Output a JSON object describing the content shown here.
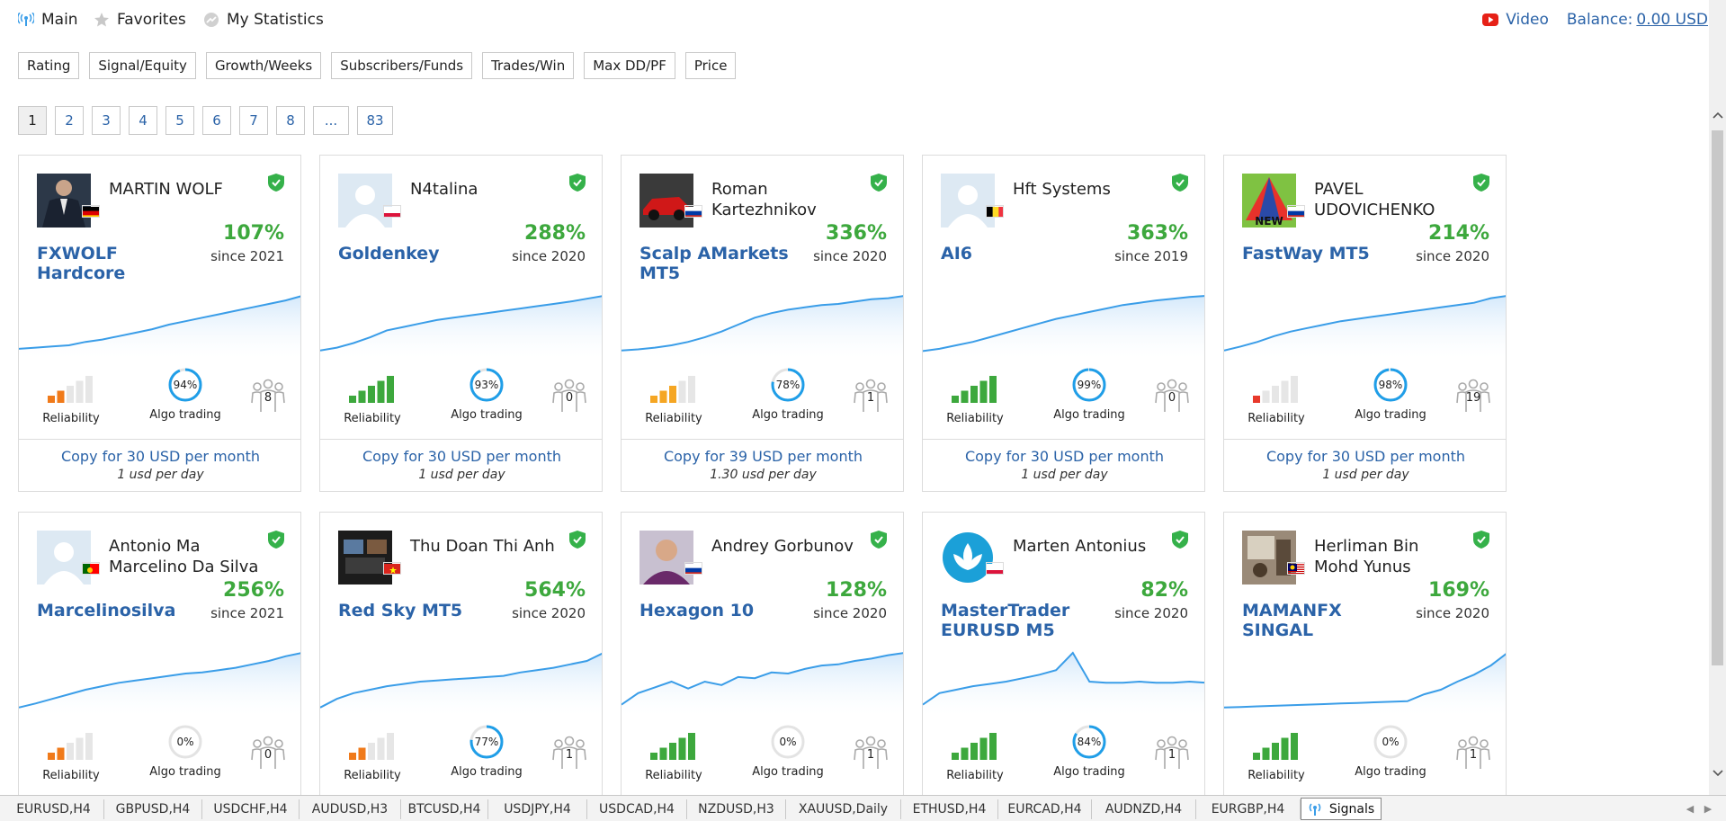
{
  "nav": {
    "main": "Main",
    "favorites": "Favorites",
    "statistics": "My Statistics",
    "video": "Video",
    "balance_label": "Balance:",
    "balance_value": "0.00 USD"
  },
  "sort_buttons": [
    "Rating",
    "Signal/Equity",
    "Growth/Weeks",
    "Subscribers/Funds",
    "Trades/Win",
    "Max DD/PF",
    "Price"
  ],
  "pages": [
    "1",
    "2",
    "3",
    "4",
    "5",
    "6",
    "7",
    "8",
    "...",
    "83"
  ],
  "labels": {
    "reliability": "Reliability",
    "algo": "Algo trading"
  },
  "cards": [
    {
      "author": "MARTIN WOLF",
      "signal": "FXWOLF Hardcore",
      "growth": "107%",
      "since": "since 2021",
      "algo": "94%",
      "algo_pct": 94,
      "reliability_bars": 2,
      "reliability_color": "#f07a1a",
      "subscribers": "8",
      "copy": "Copy for 30 USD per month",
      "per_day": "1 usd per day",
      "avatar": "photo-suit",
      "flag": "de",
      "equity": [
        0.08,
        0.1,
        0.12,
        0.14,
        0.2,
        0.24,
        0.3,
        0.36,
        0.42,
        0.5,
        0.56,
        0.62,
        0.68,
        0.74,
        0.8,
        0.86,
        0.92,
        1
      ]
    },
    {
      "author": "N4talina",
      "signal": "Goldenkey",
      "growth": "288%",
      "since": "since 2020",
      "algo": "93%",
      "algo_pct": 93,
      "reliability_bars": 5,
      "reliability_color": "#3da83d",
      "subscribers": "0",
      "copy": "Copy for 30 USD per month",
      "per_day": "1 usd per day",
      "avatar": "default",
      "flag": "pl",
      "equity": [
        0.05,
        0.1,
        0.18,
        0.28,
        0.4,
        0.46,
        0.52,
        0.58,
        0.62,
        0.66,
        0.7,
        0.74,
        0.78,
        0.82,
        0.86,
        0.9,
        0.95,
        1
      ]
    },
    {
      "author": "Roman Kartezhnikov",
      "signal": "Scalp AMarkets MT5",
      "growth": "336%",
      "since": "since 2020",
      "algo": "78%",
      "algo_pct": 78,
      "reliability_bars": 3,
      "reliability_color": "#f5a623",
      "subscribers": "1",
      "copy": "Copy for 39 USD per month",
      "per_day": "1.30 usd per day",
      "avatar": "photo-car",
      "flag": "ru",
      "equity": [
        0.05,
        0.07,
        0.1,
        0.14,
        0.2,
        0.28,
        0.38,
        0.5,
        0.62,
        0.7,
        0.76,
        0.8,
        0.84,
        0.86,
        0.9,
        0.94,
        0.96,
        1
      ]
    },
    {
      "author": "Hft Systems",
      "signal": "AI6",
      "growth": "363%",
      "since": "since 2019",
      "algo": "99%",
      "algo_pct": 99,
      "reliability_bars": 5,
      "reliability_color": "#3da83d",
      "subscribers": "0",
      "copy": "Copy for 30 USD per month",
      "per_day": "1 usd per day",
      "avatar": "default",
      "flag": "be",
      "equity": [
        0.04,
        0.08,
        0.14,
        0.2,
        0.28,
        0.36,
        0.44,
        0.52,
        0.6,
        0.66,
        0.72,
        0.78,
        0.84,
        0.88,
        0.92,
        0.95,
        0.98,
        1
      ]
    },
    {
      "author": "PAVEL UDOVICHENKO",
      "signal": "FastWay MT5",
      "growth": "214%",
      "since": "since 2020",
      "algo": "98%",
      "algo_pct": 98,
      "reliability_bars": 1,
      "reliability_color": "#e8392b",
      "subscribers": "19",
      "copy": "Copy for 30 USD per month",
      "per_day": "1 usd per day",
      "avatar": "new-logo",
      "flag": "ru",
      "equity": [
        0.05,
        0.12,
        0.2,
        0.3,
        0.38,
        0.44,
        0.5,
        0.56,
        0.6,
        0.64,
        0.68,
        0.72,
        0.76,
        0.8,
        0.84,
        0.88,
        0.96,
        1
      ]
    },
    {
      "author": "Antonio Ma Marcelino Da Silva",
      "signal": "Marcelinosilva",
      "growth": "256%",
      "since": "since 2021",
      "algo": "0%",
      "algo_pct": 0,
      "reliability_bars": 2,
      "reliability_color": "#f07a1a",
      "subscribers": "0",
      "copy": "",
      "per_day": "",
      "avatar": "default",
      "flag": "pt",
      "equity": [
        0.05,
        0.12,
        0.2,
        0.28,
        0.36,
        0.42,
        0.48,
        0.52,
        0.56,
        0.6,
        0.64,
        0.66,
        0.7,
        0.74,
        0.8,
        0.86,
        0.94,
        1
      ]
    },
    {
      "author": "Thu Doan Thi Anh",
      "signal": "Red Sky MT5",
      "growth": "564%",
      "since": "since 2020",
      "algo": "77%",
      "algo_pct": 77,
      "reliability_bars": 2,
      "reliability_color": "#f07a1a",
      "subscribers": "1",
      "copy": "",
      "per_day": "",
      "avatar": "photo-monitors",
      "flag": "vn",
      "equity": [
        0.05,
        0.2,
        0.3,
        0.36,
        0.42,
        0.46,
        0.5,
        0.52,
        0.54,
        0.56,
        0.58,
        0.6,
        0.66,
        0.7,
        0.74,
        0.8,
        0.86,
        1
      ]
    },
    {
      "author": "Andrey Gorbunov",
      "signal": "Hexagon 10",
      "growth": "128%",
      "since": "since 2020",
      "algo": "0%",
      "algo_pct": 0,
      "reliability_bars": 5,
      "reliability_color": "#3da83d",
      "subscribers": "1",
      "copy": "",
      "per_day": "",
      "avatar": "photo-man",
      "flag": "ru",
      "equity": [
        0.1,
        0.3,
        0.4,
        0.5,
        0.38,
        0.5,
        0.44,
        0.58,
        0.56,
        0.66,
        0.64,
        0.72,
        0.78,
        0.8,
        0.86,
        0.9,
        0.96,
        1
      ]
    },
    {
      "author": "Marten Antonius",
      "signal": "MasterTrader EURUSD M5",
      "growth": "82%",
      "since": "since 2020",
      "algo": "84%",
      "algo_pct": 84,
      "reliability_bars": 5,
      "reliability_color": "#3da83d",
      "subscribers": "1",
      "copy": "",
      "per_day": "",
      "avatar": "lotus",
      "flag": "pl",
      "equity": [
        0.1,
        0.3,
        0.36,
        0.42,
        0.46,
        0.5,
        0.56,
        0.62,
        0.7,
        1,
        0.5,
        0.48,
        0.48,
        0.5,
        0.48,
        0.48,
        0.5,
        0.48
      ]
    },
    {
      "author": "Herliman Bin Mohd Yunus",
      "signal": "MAMANFX SINGAL",
      "growth": "169%",
      "since": "since 2020",
      "algo": "0%",
      "algo_pct": 0,
      "reliability_bars": 5,
      "reliability_color": "#3da83d",
      "subscribers": "1",
      "copy": "",
      "per_day": "",
      "avatar": "photo-office",
      "flag": "my",
      "equity": [
        0.05,
        0.06,
        0.07,
        0.08,
        0.09,
        0.1,
        0.11,
        0.12,
        0.13,
        0.14,
        0.15,
        0.16,
        0.28,
        0.36,
        0.5,
        0.62,
        0.78,
        1
      ]
    }
  ],
  "tabs": [
    "EURUSD,H4",
    "GBPUSD,H4",
    "USDCHF,H4",
    "AUDUSD,H3",
    "BTCUSD,H4",
    "USDJPY,H4",
    "USDCAD,H4",
    "NZDUSD,H3",
    "XAUUSD,Daily",
    "ETHUSD,H4",
    "EURCAD,H4",
    "AUDNZD,H4",
    "EURGBP,H4",
    "Signals"
  ],
  "colors": {
    "link": "#2b63a8",
    "growth": "#3da83d",
    "equity": "#3a9de8",
    "shield": "#35b14a"
  }
}
